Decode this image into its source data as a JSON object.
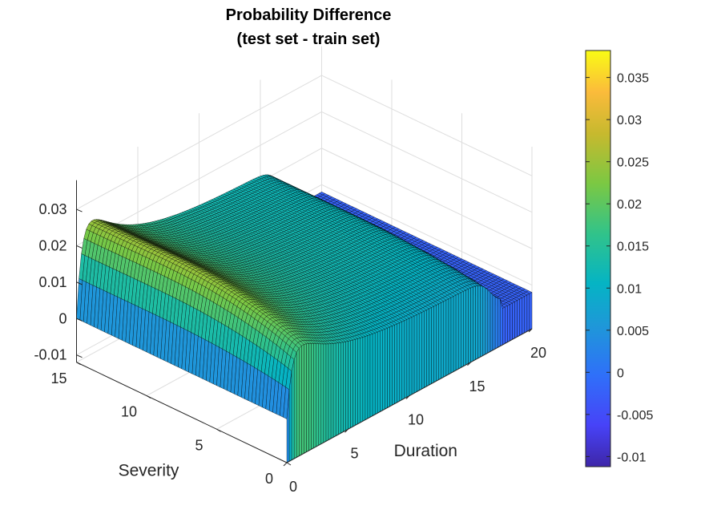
{
  "chart_data": {
    "type": "surface3d",
    "title": [
      "Probability Difference",
      "(test set - train set)"
    ],
    "xlabel": "Duration",
    "ylabel": "Severity",
    "zlabel": "",
    "xlim": [
      0,
      20
    ],
    "ylim": [
      0,
      15
    ],
    "zlim": [
      -0.012,
      0.038
    ],
    "xticks": [
      0,
      5,
      10,
      15,
      20
    ],
    "yticks": [
      0,
      5,
      10,
      15
    ],
    "zticks": [
      -0.01,
      0,
      0.01,
      0.02,
      0.03
    ],
    "ztick_labels": [
      "-0.01",
      "0",
      "0.01",
      "0.02",
      "0.03"
    ],
    "colormap": "parula",
    "colorbar": {
      "limits": [
        -0.0112,
        0.0382
      ],
      "ticks": [
        -0.01,
        -0.005,
        0,
        0.005,
        0.01,
        0.015,
        0.02,
        0.025,
        0.03,
        0.035
      ],
      "tick_labels": [
        "-0.01",
        "-0.005",
        "0",
        "0.005",
        "0.01",
        "0.015",
        "0.02",
        "0.025",
        "0.03",
        "0.035"
      ]
    },
    "grid": true,
    "surface_samples": {
      "note_axes": "z values at selected (duration, severity) points",
      "points": [
        {
          "duration": 0,
          "severity": 15,
          "z": 0.0
        },
        {
          "duration": 0,
          "severity": 0,
          "z": 0.0
        },
        {
          "duration": 1,
          "severity": 15,
          "z": 0.031
        },
        {
          "duration": 1,
          "severity": 7,
          "z": 0.033
        },
        {
          "duration": 1,
          "severity": 0,
          "z": 0.024
        },
        {
          "duration": 10,
          "severity": 15,
          "z": 0.012
        },
        {
          "duration": 10,
          "severity": 7,
          "z": 0.013
        },
        {
          "duration": 10,
          "severity": 0,
          "z": 0.009
        },
        {
          "duration": 17,
          "severity": 15,
          "z": 0.011
        },
        {
          "duration": 17,
          "severity": 0,
          "z": 0.008
        },
        {
          "duration": 18,
          "severity": 15,
          "z": -0.002
        },
        {
          "duration": 20,
          "severity": 15,
          "z": -0.002
        },
        {
          "duration": 20,
          "severity": 0,
          "z": -0.002
        }
      ]
    }
  }
}
